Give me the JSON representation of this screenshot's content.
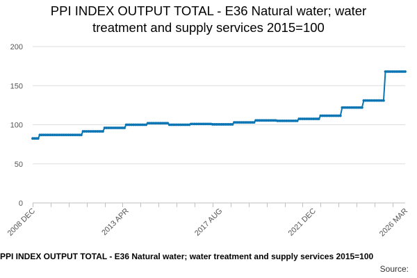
{
  "chart_data": {
    "type": "line",
    "title": "PPI INDEX OUTPUT TOTAL - E36 Natural water; water treatment and supply services 2015=100",
    "title_lines": [
      "PPI INDEX OUTPUT TOTAL - E36 Natural water; water",
      "treatment and supply services 2015=100"
    ],
    "xlabel": "",
    "ylabel": "",
    "ylim": [
      0,
      200
    ],
    "yticks": [
      0,
      50,
      100,
      150,
      200
    ],
    "x_tick_labels": [
      "2008 DEC",
      "2013 APR",
      "2017 AUG",
      "2021 DEC",
      "2026 MAR"
    ],
    "legend": "PPI INDEX OUTPUT TOTAL - E36 Natural water; water treatment and supply services 2015=100",
    "series": [
      {
        "name": "PPI INDEX OUTPUT TOTAL - E36 Natural water; water treatment and supply services 2015=100",
        "color": "#0b75b4",
        "start": "2008-12",
        "end": "2026-03",
        "steps": [
          {
            "from": "2008-12",
            "value": 82.5
          },
          {
            "from": "2009-04",
            "value": 87.0
          },
          {
            "from": "2011-04",
            "value": 91.5
          },
          {
            "from": "2012-04",
            "value": 96.0
          },
          {
            "from": "2013-04",
            "value": 100.0
          },
          {
            "from": "2014-04",
            "value": 102.0
          },
          {
            "from": "2015-04",
            "value": 100.0
          },
          {
            "from": "2016-04",
            "value": 101.0
          },
          {
            "from": "2017-04",
            "value": 100.5
          },
          {
            "from": "2018-04",
            "value": 103.0
          },
          {
            "from": "2019-04",
            "value": 105.5
          },
          {
            "from": "2020-04",
            "value": 105.0
          },
          {
            "from": "2021-04",
            "value": 107.5
          },
          {
            "from": "2022-04",
            "value": 111.5
          },
          {
            "from": "2023-04",
            "value": 122.0
          },
          {
            "from": "2024-04",
            "value": 131.0
          },
          {
            "from": "2025-04",
            "value": 168.0
          }
        ]
      }
    ]
  },
  "footer": {
    "source_label": "Source:"
  }
}
